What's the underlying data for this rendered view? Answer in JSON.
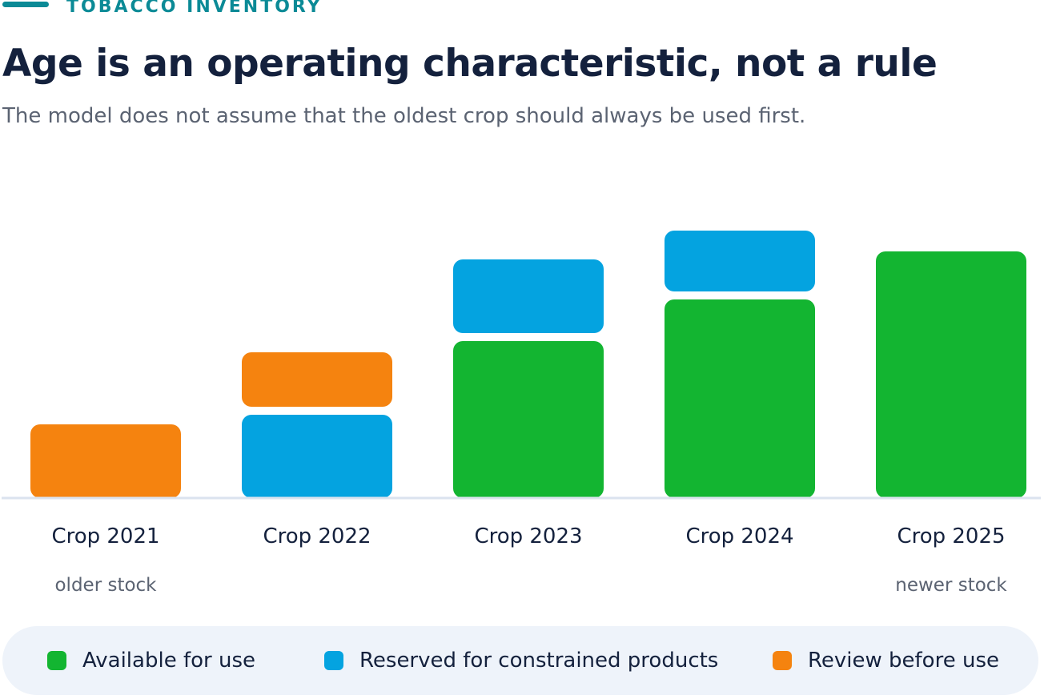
{
  "header": {
    "eyebrow": "TOBACCO INVENTORY",
    "title": "Age is an operating characteristic, not a rule",
    "subtitle": "The model does not assume that the oldest crop should always be used first."
  },
  "colors": {
    "available": "#13b531",
    "reserved": "#04a3e0",
    "review": "#f5830f",
    "baseline": "#dbe3ef",
    "category_text": "#14213d",
    "note_text": "#5b6372"
  },
  "chart_data": {
    "type": "bar",
    "stacked": true,
    "categories": [
      "Crop 2021",
      "Crop 2022",
      "Crop 2023",
      "Crop 2024",
      "Crop 2025"
    ],
    "category_notes": [
      "older stock",
      "",
      "",
      "",
      "newer stock"
    ],
    "series": [
      {
        "name": "Available for use",
        "color": "#13b531",
        "values": [
          0,
          0,
          196,
          248,
          308
        ]
      },
      {
        "name": "Reserved for constrained products",
        "color": "#04a3e0",
        "values": [
          0,
          104,
          92,
          76,
          0
        ]
      },
      {
        "name": "Review before use",
        "color": "#f5830f",
        "values": [
          92,
          68,
          0,
          0,
          0
        ]
      }
    ],
    "ylim": [
      0,
      340
    ],
    "y_axis_shown": false,
    "grid": false,
    "legend_position": "bottom"
  },
  "legend": {
    "items": [
      {
        "label": "Available for use",
        "color": "#13b531"
      },
      {
        "label": "Reserved for constrained products",
        "color": "#04a3e0"
      },
      {
        "label": "Review before use",
        "color": "#f5830f"
      }
    ]
  }
}
